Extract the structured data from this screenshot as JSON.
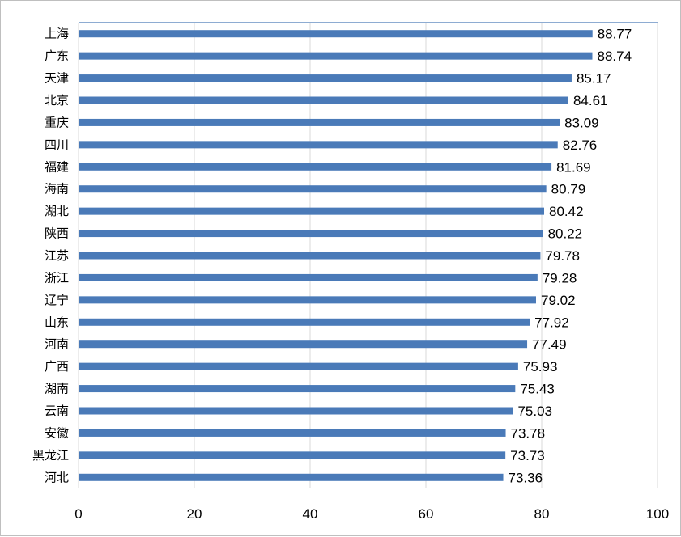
{
  "chart_data": {
    "type": "bar",
    "orientation": "horizontal",
    "categories": [
      "上海",
      "广东",
      "天津",
      "北京",
      "重庆",
      "四川",
      "福建",
      "海南",
      "湖北",
      "陕西",
      "江苏",
      "浙江",
      "辽宁",
      "山东",
      "河南",
      "广西",
      "湖南",
      "云南",
      "安徽",
      "黑龙江",
      "河北"
    ],
    "values": [
      88.77,
      88.74,
      85.17,
      84.61,
      83.09,
      82.76,
      81.69,
      80.79,
      80.42,
      80.22,
      79.78,
      79.28,
      79.02,
      77.92,
      77.49,
      75.93,
      75.43,
      75.03,
      73.78,
      73.73,
      73.36
    ],
    "value_labels": [
      "88.77",
      "88.74",
      "85.17",
      "84.61",
      "83.09",
      "82.76",
      "81.69",
      "80.79",
      "80.42",
      "80.22",
      "79.78",
      "79.28",
      "79.02",
      "77.92",
      "77.49",
      "75.93",
      "75.43",
      "75.03",
      "73.78",
      "73.73",
      "73.36"
    ],
    "xlim": [
      0,
      100
    ],
    "xticks": [
      0,
      20,
      40,
      60,
      80,
      100
    ],
    "xtick_labels": [
      "0",
      "20",
      "40",
      "60",
      "80",
      "100"
    ],
    "grid": "vertical",
    "legend": "none",
    "bar_color": "#4a7ab8",
    "grid_color": "#d9d9d9",
    "axis_color": "#4a7ab8"
  }
}
